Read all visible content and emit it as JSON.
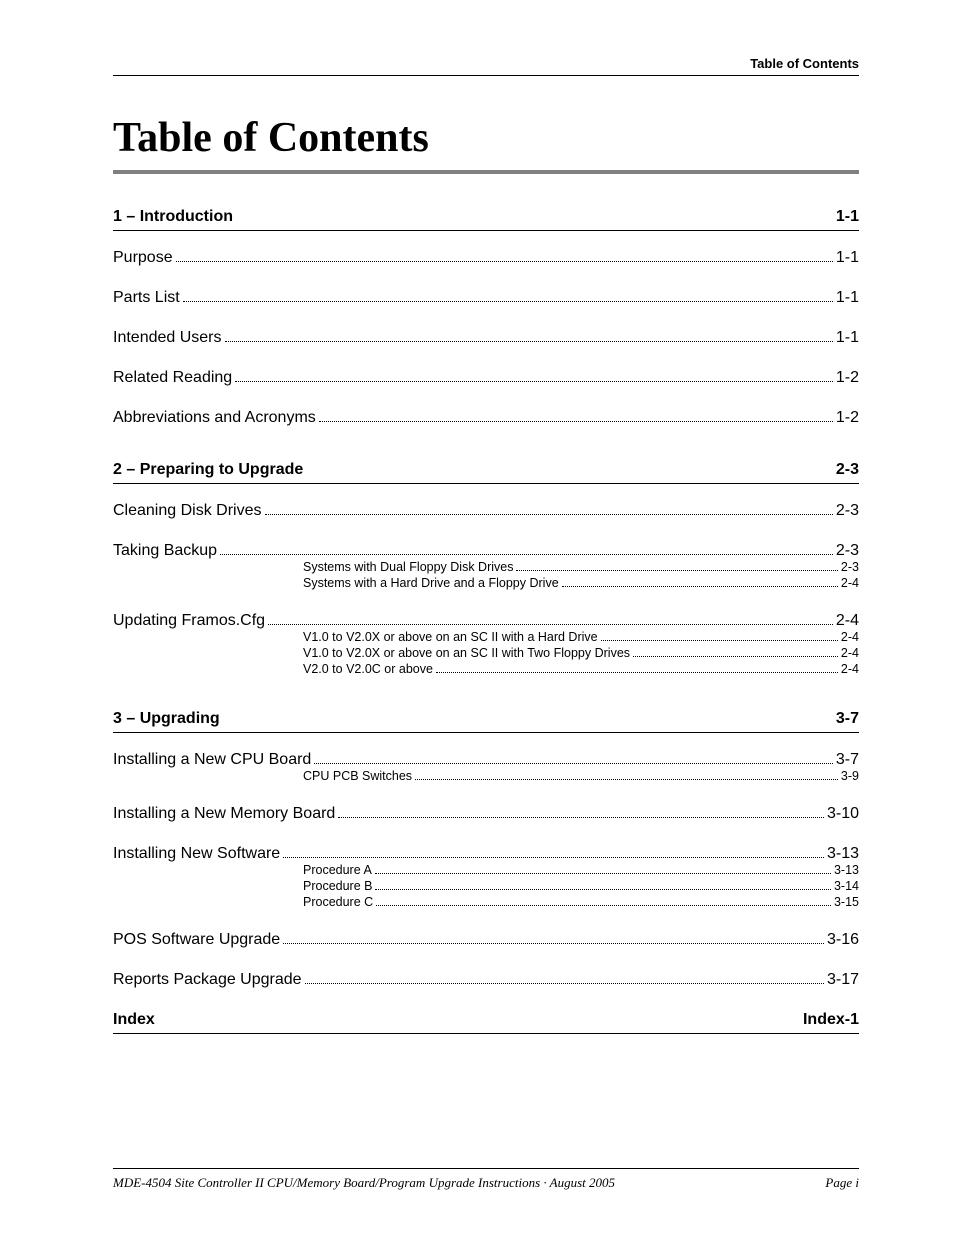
{
  "running_head": "Table of Contents",
  "title": "Table of Contents",
  "footer": {
    "left": "MDE-4504 Site Controller II CPU/Memory Board/Program Upgrade Instructions · August 2005",
    "right": "Page i"
  },
  "sections": [
    {
      "heading": "1 – Introduction",
      "page": "1-1",
      "entries": [
        {
          "label": "Purpose",
          "page": "1-1"
        },
        {
          "label": "Parts List",
          "page": "1-1"
        },
        {
          "label": "Intended Users",
          "page": "1-1"
        },
        {
          "label": "Related Reading",
          "page": "1-2"
        },
        {
          "label": "Abbreviations and Acronyms",
          "page": "1-2"
        }
      ]
    },
    {
      "heading": "2 – Preparing to Upgrade",
      "page": "2-3",
      "entries": [
        {
          "label": "Cleaning Disk Drives",
          "page": "2-3"
        },
        {
          "label": "Taking Backup",
          "page": "2-3",
          "subs": [
            {
              "label": "Systems with Dual Floppy Disk Drives",
              "page": "2-3"
            },
            {
              "label": "Systems with a Hard Drive and a Floppy Drive",
              "page": "2-4"
            }
          ]
        },
        {
          "label": "Updating Framos.Cfg",
          "page": "2-4",
          "subs": [
            {
              "label": "V1.0 to V2.0X or above on an SC II with a Hard Drive",
              "page": "2-4"
            },
            {
              "label": "V1.0 to V2.0X or above on an SC II with Two Floppy Drives",
              "page": "2-4"
            },
            {
              "label": "V2.0 to V2.0C or above",
              "page": "2-4"
            }
          ]
        }
      ]
    },
    {
      "heading": "3 – Upgrading",
      "page": "3-7",
      "entries": [
        {
          "label": "Installing a New CPU Board",
          "page": "3-7",
          "subs": [
            {
              "label": "CPU PCB Switches",
              "page": "3-9"
            }
          ]
        },
        {
          "label": "Installing a New Memory Board",
          "page": "3-10"
        },
        {
          "label": "Installing New Software",
          "page": "3-13",
          "subs": [
            {
              "label": "Procedure A",
              "page": "3-13"
            },
            {
              "label": "Procedure B",
              "page": "3-14"
            },
            {
              "label": "Procedure C",
              "page": "3-15"
            }
          ]
        },
        {
          "label": "POS Software Upgrade",
          "page": "3-16"
        },
        {
          "label": "Reports Package Upgrade",
          "page": "3-17"
        }
      ]
    },
    {
      "heading": "Index",
      "page": "Index-1",
      "entries": []
    }
  ],
  "style": {
    "background_color": "#ffffff",
    "text_color": "#000000",
    "title_rule_color": "#808080",
    "title_font": "Times New Roman",
    "body_font": "Arial",
    "title_fontsize": 42,
    "section_fontsize": 16,
    "entry_fontsize": 16,
    "sub_fontsize": 12.5,
    "footer_fontsize": 13
  }
}
